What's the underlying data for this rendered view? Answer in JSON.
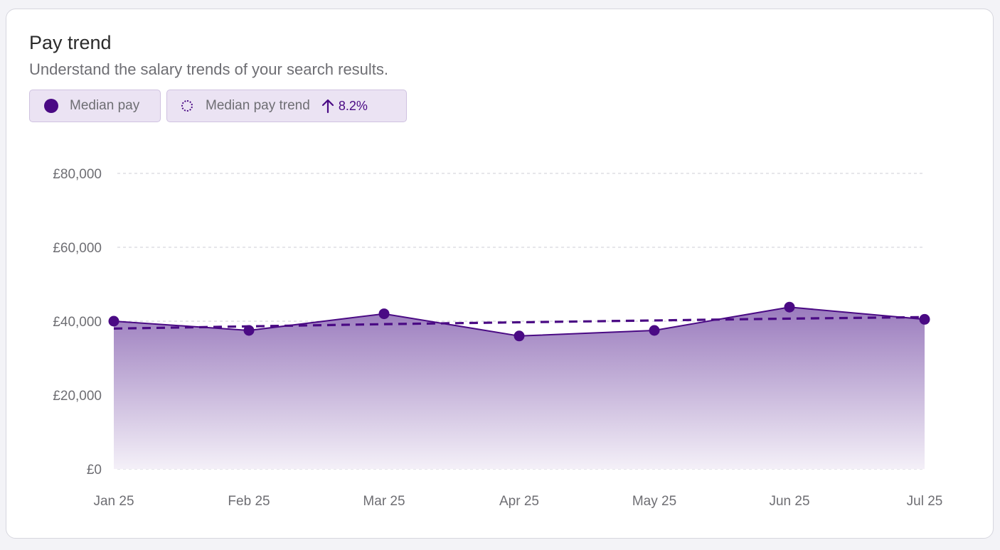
{
  "card": {
    "title": "Pay trend",
    "subtitle": "Understand the salary trends of your search results."
  },
  "legend": {
    "median_pay_label": "Median pay",
    "median_pay_trend_label": "Median pay trend",
    "trend_value": "8.2%",
    "trend_direction_icon": "arrow-up-icon"
  },
  "colors": {
    "accent": "#4a0a84",
    "area_top": "#9a7bbd",
    "area_bottom": "#f4f0f8",
    "grid": "#d8d8de"
  },
  "chart_data": {
    "type": "area",
    "x": [
      "Jan 25",
      "Feb 25",
      "Mar 25",
      "Apr 25",
      "May 25",
      "Jun 25",
      "Jul 25"
    ],
    "y_ticks": [
      "£0",
      "£20,000",
      "£40,000",
      "£60,000",
      "£80,000"
    ],
    "ylim": [
      0,
      80000
    ],
    "grid": true,
    "series": [
      {
        "name": "Median pay",
        "style": "solid-area-with-markers",
        "values": [
          40000,
          37500,
          42000,
          36000,
          37500,
          43800,
          40500
        ]
      },
      {
        "name": "Median pay trend",
        "style": "dashed-line",
        "values": [
          38000,
          38600,
          39200,
          39700,
          40200,
          40700,
          41100
        ]
      }
    ]
  }
}
